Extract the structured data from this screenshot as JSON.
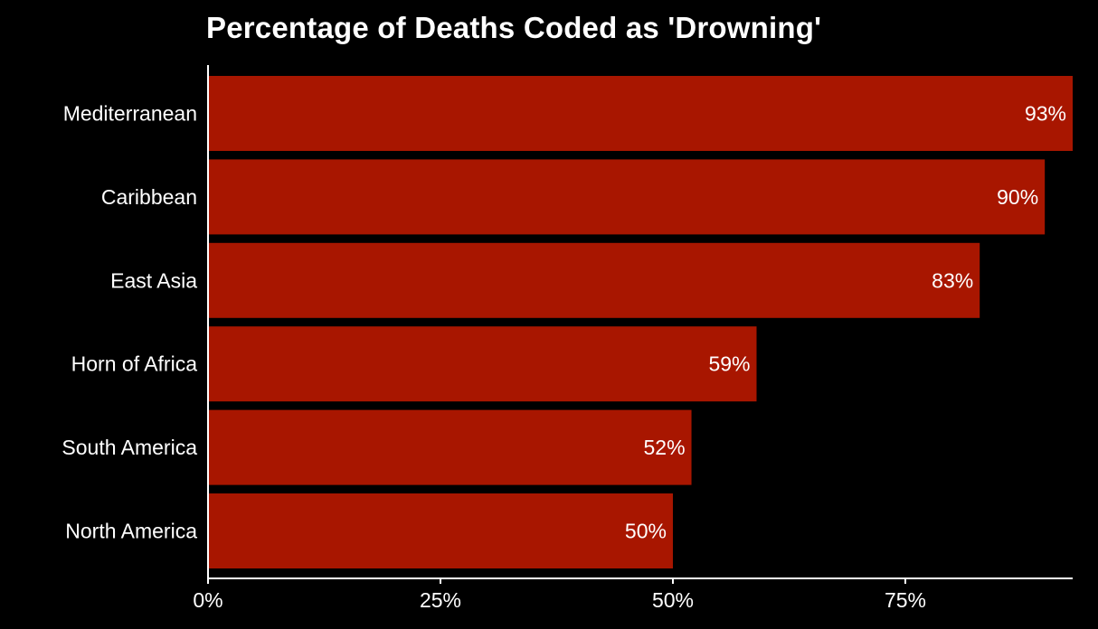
{
  "chart_data": {
    "type": "bar",
    "orientation": "horizontal",
    "title": "Percentage of Deaths Coded as 'Drowning'",
    "categories": [
      "Mediterranean",
      "Caribbean",
      "East Asia",
      "Horn of Africa",
      "South America",
      "North America"
    ],
    "values": [
      93,
      90,
      83,
      59,
      52,
      50
    ],
    "value_labels": [
      "93%",
      "90%",
      "83%",
      "59%",
      "52%",
      "50%"
    ],
    "xlabel": "",
    "ylabel": "",
    "xlim": [
      0,
      93
    ],
    "xticks": [
      0,
      25,
      50,
      75
    ],
    "xtick_labels": [
      "0%",
      "25%",
      "50%",
      "75%"
    ],
    "grid": false,
    "legend": "none"
  },
  "colors": {
    "background": "#000000",
    "bar": "#a81600",
    "text": "#ffffff",
    "axis": "#ffffff"
  }
}
